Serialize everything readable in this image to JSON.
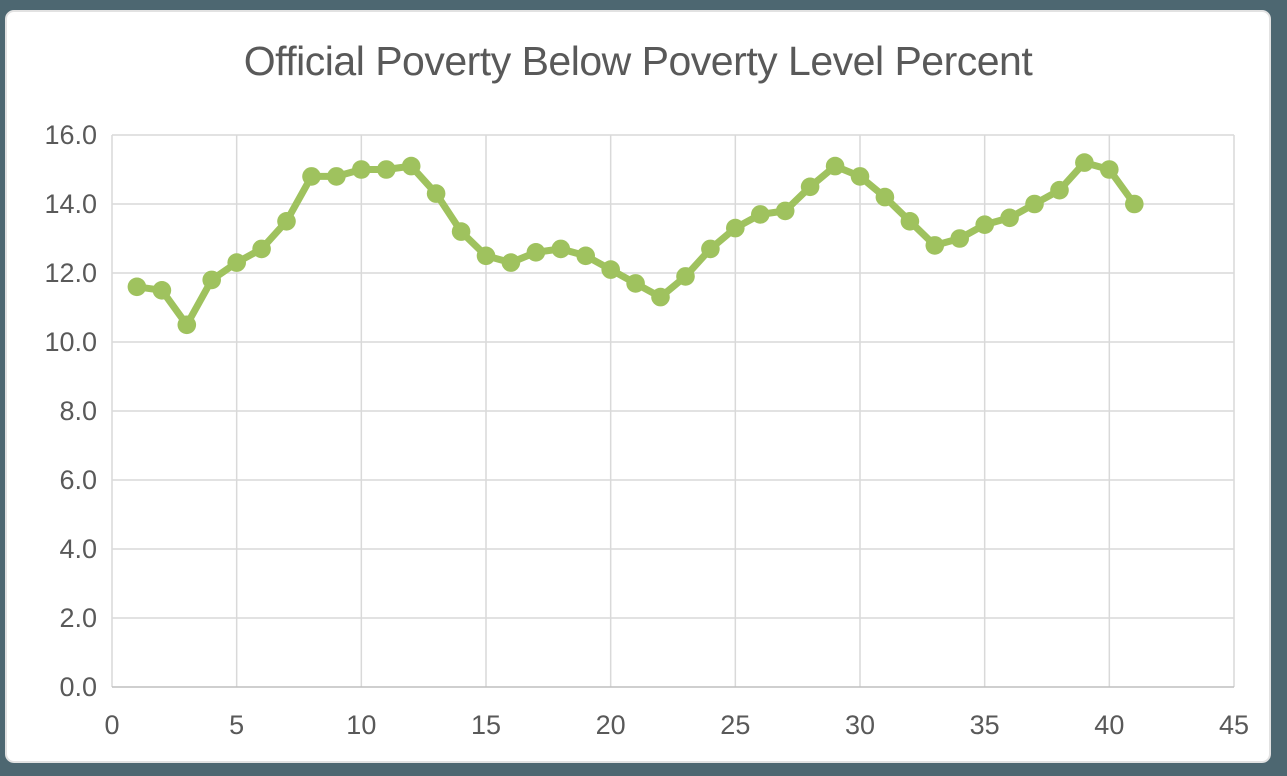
{
  "frame": {
    "background_color": "#4d6771",
    "card_background": "#ffffff",
    "card_edge_color": "#e2e2e2"
  },
  "chart_data": {
    "type": "line",
    "title": "Official Poverty Below Poverty Level Percent",
    "title_color": "#595959",
    "xlabel": "",
    "ylabel": "",
    "xlim": [
      0,
      45
    ],
    "ylim": [
      0.0,
      16.0
    ],
    "x_ticks": [
      0,
      5,
      10,
      15,
      20,
      25,
      30,
      35,
      40,
      45
    ],
    "y_ticks": [
      0.0,
      2.0,
      4.0,
      6.0,
      8.0,
      10.0,
      12.0,
      14.0,
      16.0
    ],
    "y_tick_labels": [
      "0.0",
      "2.0",
      "4.0",
      "6.0",
      "8.0",
      "10.0",
      "12.0",
      "14.0",
      "16.0"
    ],
    "grid": true,
    "gridline_color": "#d9d9d9",
    "axis_line_color": "#bfbfbf",
    "tick_label_color": "#595959",
    "legend_position": "none",
    "marker_style": "circle",
    "series": [
      {
        "name": "Official Poverty Below Poverty Level Percent",
        "color": "#9fc25e",
        "x": [
          1,
          2,
          3,
          4,
          5,
          6,
          7,
          8,
          9,
          10,
          11,
          12,
          13,
          14,
          15,
          16,
          17,
          18,
          19,
          20,
          21,
          22,
          23,
          24,
          25,
          26,
          27,
          28,
          29,
          30,
          31,
          32,
          33,
          34,
          35,
          36,
          37,
          38,
          39,
          40,
          41
        ],
        "values": [
          11.6,
          11.5,
          10.5,
          11.8,
          12.3,
          12.7,
          13.5,
          14.8,
          14.8,
          15.0,
          15.0,
          15.1,
          14.3,
          13.2,
          12.5,
          12.3,
          12.6,
          12.7,
          12.5,
          12.1,
          11.7,
          11.3,
          11.9,
          12.7,
          13.3,
          13.7,
          13.8,
          14.5,
          15.1,
          14.8,
          14.2,
          13.5,
          12.8,
          13.0,
          13.4,
          13.6,
          14.0,
          14.4,
          15.2,
          15.0,
          14.0
        ]
      }
    ]
  }
}
